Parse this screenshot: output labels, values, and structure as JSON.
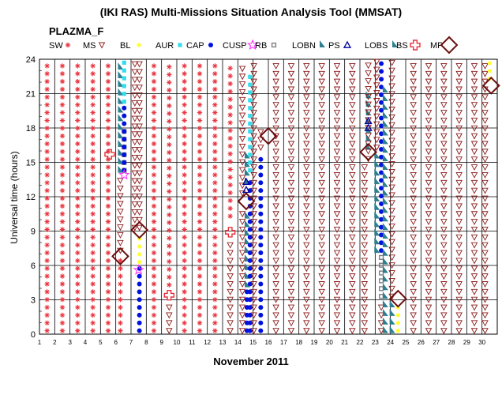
{
  "title": "(IKI RAS) Multi-Missions Situation Analysis Tool (MMSAT)",
  "subtitle": "PLAZMA_F",
  "legend": [
    {
      "label": "SW",
      "symbol": "red-asterisk-icon",
      "color": "#e8323c"
    },
    {
      "label": "MS",
      "symbol": "down-triangle-icon",
      "color": "#8b1a1a"
    },
    {
      "label": "BL",
      "symbol": "yellow-dot-icon",
      "color": "#ffff33"
    },
    {
      "label": "AUR",
      "symbol": "cyan-square-icon",
      "color": "#33ddee"
    },
    {
      "label": "CAP",
      "symbol": "blue-dot-icon",
      "color": "#0010e0"
    },
    {
      "label": "CUSP",
      "symbol": "magenta-star-icon",
      "color": "#ff33ff"
    },
    {
      "label": "RB",
      "symbol": "gray-square-icon",
      "color": "#808080"
    },
    {
      "label": "LOBN",
      "symbol": "teal-flag-icon",
      "color": "#2f7f8f"
    },
    {
      "label": "PS",
      "symbol": "blue-open-triangle-icon",
      "color": "#0000a0"
    },
    {
      "label": "LOBS",
      "symbol": "teal-flag-icon",
      "color": "#2f7f8f"
    },
    {
      "label": "BS",
      "symbol": "red-cross-icon",
      "color": "#e8323c"
    },
    {
      "label": "MP",
      "symbol": "brown-diamond-icon",
      "color": "#6b0f0f"
    }
  ],
  "chart_data": {
    "type": "scatter",
    "title": "(IKI RAS) Multi-Missions Situation Analysis Tool (MMSAT)",
    "subtitle": "PLAZMA_F",
    "xlabel": "November 2011",
    "ylabel": "Universal time (hours)",
    "xlim": [
      1,
      31
    ],
    "ylim": [
      0,
      24
    ],
    "xticks": [
      "1",
      "2",
      "3",
      "4",
      "5",
      "6",
      "7",
      "8",
      "9",
      "10",
      "11",
      "12",
      "13",
      "14",
      "15",
      "16",
      "17",
      "18",
      "19",
      "20",
      "21",
      "22",
      "23",
      "24",
      "25",
      "26",
      "27",
      "28",
      "29",
      "30"
    ],
    "yticks": [
      "0",
      "3",
      "6",
      "9",
      "12",
      "15",
      "18",
      "21",
      "24"
    ],
    "grid": true,
    "legend_position": "top",
    "region_codes": {
      "SW": "solar wind",
      "MS": "magnetosheath",
      "BL": "BL",
      "AUR": "AUR",
      "CAP": "CAP",
      "CUSP": "CUSP",
      "RB": "RB",
      "LOBN": "LOBN",
      "PS": "PS",
      "LOBS": "LOBS"
    },
    "segments": [
      {
        "day": 1.5,
        "t0": 0,
        "t1": 24,
        "region": "SW"
      },
      {
        "day": 2.5,
        "t0": 0,
        "t1": 24,
        "region": "SW"
      },
      {
        "day": 3.5,
        "t0": 0,
        "t1": 24,
        "region": "SW"
      },
      {
        "day": 4.5,
        "t0": 0,
        "t1": 24,
        "region": "SW"
      },
      {
        "day": 5.5,
        "t0": 0,
        "t1": 24,
        "region": "SW"
      },
      {
        "day": 6.3,
        "t0": 0,
        "t1": 7,
        "region": "SW"
      },
      {
        "day": 6.3,
        "t0": 7,
        "t1": 14,
        "region": "MS"
      },
      {
        "day": 6.3,
        "t0": 14,
        "t1": 24,
        "region": "LOBN"
      },
      {
        "day": 6.55,
        "t0": 14,
        "t1": 18,
        "region": "RB"
      },
      {
        "day": 6.55,
        "t0": 14,
        "t1": 20,
        "region": "CAP"
      },
      {
        "day": 6.55,
        "t0": 20,
        "t1": 24,
        "region": "AUR"
      },
      {
        "day": 7.25,
        "t0": 9,
        "t1": 24,
        "region": "MS"
      },
      {
        "day": 7.55,
        "t0": 0,
        "t1": 6,
        "region": "CAP"
      },
      {
        "day": 7.55,
        "t0": 6,
        "t1": 9,
        "region": "BL"
      },
      {
        "day": 7.55,
        "t0": 9,
        "t1": 24,
        "region": "MS"
      },
      {
        "day": 8.5,
        "t0": 0,
        "t1": 24,
        "region": "SW"
      },
      {
        "day": 9.5,
        "t0": 4,
        "t1": 24,
        "region": "SW"
      },
      {
        "day": 9.5,
        "t0": 0,
        "t1": 3,
        "region": "MS"
      },
      {
        "day": 10.5,
        "t0": 0,
        "t1": 24,
        "region": "SW"
      },
      {
        "day": 11.5,
        "t0": 0,
        "t1": 24,
        "region": "SW"
      },
      {
        "day": 12.5,
        "t0": 0,
        "t1": 24,
        "region": "SW"
      },
      {
        "day": 13.5,
        "t0": 10,
        "t1": 24,
        "region": "SW"
      },
      {
        "day": 13.5,
        "t0": 0,
        "t1": 8,
        "region": "MS"
      },
      {
        "day": 14.3,
        "t0": 0,
        "t1": 11,
        "region": "MS"
      },
      {
        "day": 14.3,
        "t0": 12,
        "t1": 24,
        "region": "MS"
      },
      {
        "day": 14.6,
        "t0": 0,
        "t1": 4,
        "region": "CAP"
      },
      {
        "day": 14.6,
        "t0": 4,
        "t1": 11,
        "region": "LOBN"
      },
      {
        "day": 14.6,
        "t0": 13,
        "t1": 16,
        "region": "LOBN"
      },
      {
        "day": 14.8,
        "t0": 0,
        "t1": 14,
        "region": "CAP"
      },
      {
        "day": 14.8,
        "t0": 14,
        "t1": 23,
        "region": "AUR"
      },
      {
        "day": 15.05,
        "t0": 0,
        "t1": 24,
        "region": "MS"
      },
      {
        "day": 15.5,
        "t0": 0,
        "t1": 16,
        "region": "CAP"
      },
      {
        "day": 15.5,
        "t0": 16,
        "t1": 18,
        "region": "MS"
      },
      {
        "day": 16.5,
        "t0": 0,
        "t1": 24,
        "region": "MS"
      },
      {
        "day": 17.5,
        "t0": 0,
        "t1": 24,
        "region": "MS"
      },
      {
        "day": 18.5,
        "t0": 0,
        "t1": 24,
        "region": "MS"
      },
      {
        "day": 19.5,
        "t0": 0,
        "t1": 24,
        "region": "MS"
      },
      {
        "day": 20.5,
        "t0": 0,
        "t1": 24,
        "region": "MS"
      },
      {
        "day": 21.5,
        "t0": 0,
        "t1": 24,
        "region": "MS"
      },
      {
        "day": 22.3,
        "t0": 0,
        "t1": 15,
        "region": "MS"
      },
      {
        "day": 22.55,
        "t0": 16,
        "t1": 21,
        "region": "LOBN"
      },
      {
        "day": 22.55,
        "t0": 15,
        "t1": 24,
        "region": "MS"
      },
      {
        "day": 23.1,
        "t0": 7,
        "t1": 16,
        "region": "LOBS"
      },
      {
        "day": 23.1,
        "t0": 16,
        "t1": 24,
        "region": "MS"
      },
      {
        "day": 23.4,
        "t0": 0,
        "t1": 3,
        "region": "MS"
      },
      {
        "day": 23.4,
        "t0": 3,
        "t1": 7,
        "region": "RB"
      },
      {
        "day": 23.4,
        "t0": 7,
        "t1": 24,
        "region": "CAP"
      },
      {
        "day": 23.65,
        "t0": 0,
        "t1": 22,
        "region": "LOBS"
      },
      {
        "day": 24.1,
        "t0": 0,
        "t1": 3,
        "region": "LOBN"
      },
      {
        "day": 24.1,
        "t0": 3,
        "t1": 24,
        "region": "MS"
      },
      {
        "day": 24.5,
        "t0": 0,
        "t1": 3,
        "region": "BL"
      },
      {
        "day": 25.5,
        "t0": 0,
        "t1": 24,
        "region": "MS"
      },
      {
        "day": 26.5,
        "t0": 0,
        "t1": 24,
        "region": "MS"
      },
      {
        "day": 27.5,
        "t0": 0,
        "t1": 24,
        "region": "MS"
      },
      {
        "day": 28.5,
        "t0": 0,
        "t1": 24,
        "region": "MS"
      },
      {
        "day": 29.5,
        "t0": 0,
        "t1": 24,
        "region": "MS"
      },
      {
        "day": 30.2,
        "t0": 0,
        "t1": 24,
        "region": "MS"
      },
      {
        "day": 30.5,
        "t0": 22,
        "t1": 24,
        "region": "BL"
      }
    ],
    "markers": [
      {
        "day": 6.3,
        "t": 6.8,
        "type": "MP"
      },
      {
        "day": 7.55,
        "t": 9.1,
        "type": "MP"
      },
      {
        "day": 14.55,
        "t": 11.6,
        "type": "MP"
      },
      {
        "day": 16.0,
        "t": 17.3,
        "type": "MP"
      },
      {
        "day": 22.55,
        "t": 15.9,
        "type": "MP"
      },
      {
        "day": 24.5,
        "t": 3.1,
        "type": "MP"
      },
      {
        "day": 30.6,
        "t": 21.7,
        "type": "MP"
      },
      {
        "day": 5.6,
        "t": 15.7,
        "type": "BS"
      },
      {
        "day": 9.5,
        "t": 3.4,
        "type": "BS"
      },
      {
        "day": 13.5,
        "t": 8.9,
        "type": "BS"
      },
      {
        "day": 6.55,
        "t": 13.9,
        "type": "CUSP"
      },
      {
        "day": 7.5,
        "t": 5.6,
        "type": "CUSP"
      },
      {
        "day": 14.55,
        "t": 13.3,
        "type": "PS"
      },
      {
        "day": 14.55,
        "t": 12.6,
        "type": "PS"
      },
      {
        "day": 22.55,
        "t": 18.6,
        "type": "PS"
      },
      {
        "day": 22.55,
        "t": 18.0,
        "type": "PS"
      }
    ]
  }
}
